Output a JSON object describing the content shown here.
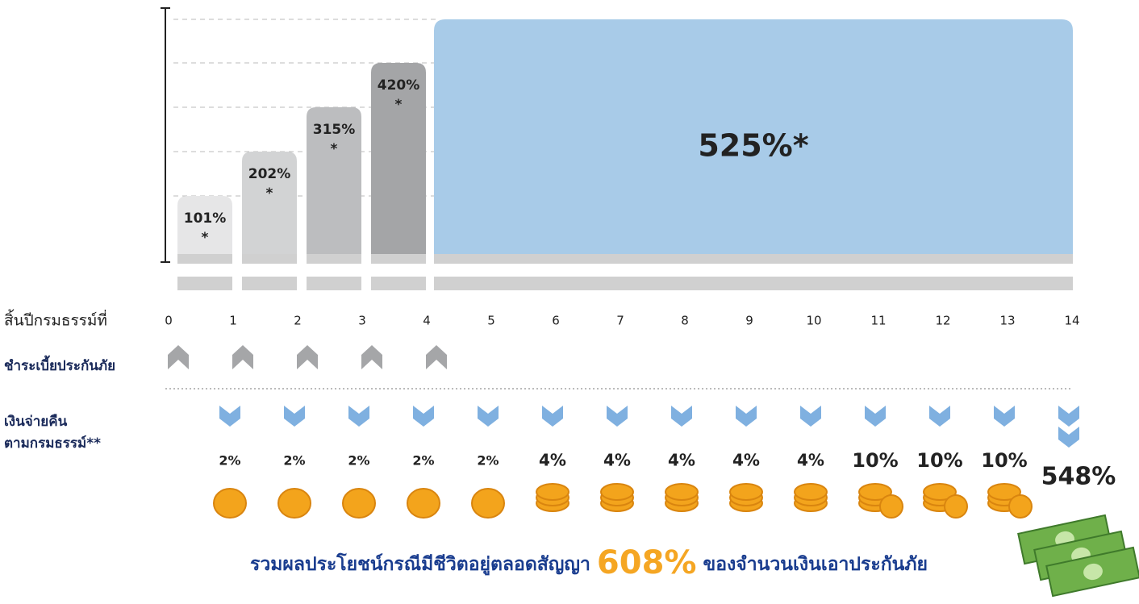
{
  "bars": [
    {
      "label": "101%",
      "note": "*"
    },
    {
      "label": "202%",
      "note": "*"
    },
    {
      "label": "315%",
      "note": "*"
    },
    {
      "label": "420%",
      "note": "*"
    },
    {
      "label": "525%*"
    }
  ],
  "years_label": "สิ้นปีกรมธรรม์ที่",
  "years": [
    "0",
    "1",
    "2",
    "3",
    "4",
    "5",
    "6",
    "7",
    "8",
    "9",
    "10",
    "11",
    "12",
    "13",
    "14"
  ],
  "premium_label": "ชำระเบี้ยประกันภัย",
  "payout_label": [
    "เงินจ่ายคืน",
    "ตามกรมธรรม์**"
  ],
  "payouts": [
    "2%",
    "2%",
    "2%",
    "2%",
    "2%",
    "4%",
    "4%",
    "4%",
    "4%",
    "4%",
    "10%",
    "10%",
    "10%",
    "548%"
  ],
  "total": {
    "prefix": "รวมผลประโยชน์กรณีมีชีวิตอยู่ตลอดสัญญา",
    "value": "608%",
    "suffix": "ของจำนวนเงินเอาประกันภัย"
  }
}
